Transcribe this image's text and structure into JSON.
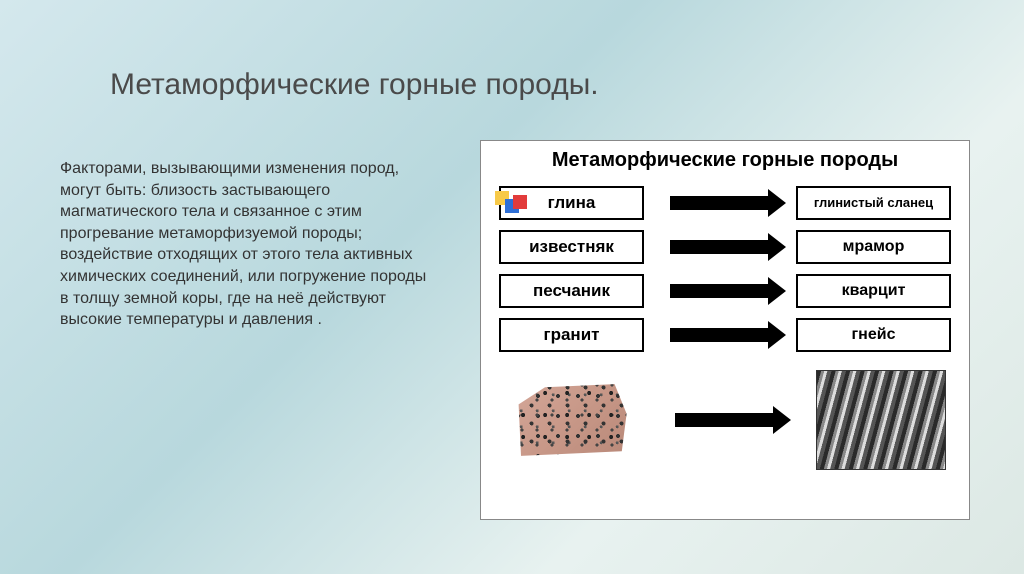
{
  "title": "Метаморфические горные породы.",
  "body": "Факторами, вызывающими изменения пород, могут быть: близость застывающего магматического тела и связанное с этим прогревание метаморфизуемой породы; воздействие отходящих от этого тела активных химических соединений, или погружение породы в толщу земной коры, где на неё действуют высокие температуры и давления .",
  "diagram": {
    "title": "Метаморфические горные породы",
    "rows": [
      {
        "left": "глина",
        "right": "глинистый сланец",
        "right_small": true
      },
      {
        "left": "известняк",
        "right": "мрамор"
      },
      {
        "left": "песчаник",
        "right": "кварцит"
      },
      {
        "left": "гранит",
        "right": "гнейс"
      }
    ],
    "deco_colors": {
      "a": "#f7c948",
      "b": "#2e6fd6",
      "c": "#e23b3b"
    },
    "arrow_color": "#000000",
    "box_border": "#000000"
  },
  "colors": {
    "bg_stops": [
      "#d4e8ed",
      "#b8d8dd",
      "#e8f2f0",
      "#dce8e4"
    ],
    "title_color": "#4a4a4a",
    "text_color": "#333333"
  },
  "typography": {
    "title_size_pt": 22,
    "body_size_pt": 12,
    "diagram_title_pt": 15,
    "box_label_pt": 13
  }
}
